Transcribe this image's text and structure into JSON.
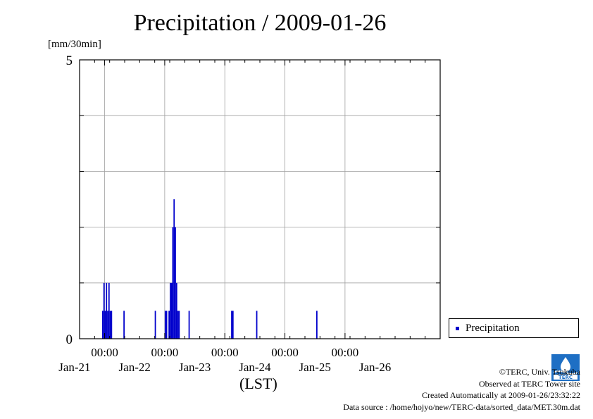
{
  "page": {
    "title": "Precipitation / 2009-01-26",
    "unit_label": "[mm/30min]",
    "x_caption": "(LST)"
  },
  "legend": {
    "label": "Precipitation",
    "color": "#0000cc"
  },
  "credits": {
    "copyright": "©TERC, Univ. Tsukuba",
    "site": "Observed at TERC Tower site",
    "created": "Created Automatically at 2009-01-26/23:32:22",
    "source": "Data source : /home/hojyo/new/TERC-data/sorted_data/MET.30m.dat",
    "logo_text": "TERC"
  },
  "chart_data": {
    "type": "bar",
    "title": "Precipitation / 2009-01-26",
    "ylabel": "[mm/30min]",
    "xlabel": "(LST)",
    "ylim": [
      0,
      5
    ],
    "y_tick_labels": [
      "0",
      "5"
    ],
    "y_gridlines": [
      1,
      2,
      3,
      4
    ],
    "xlim": [
      "2009-01-20T14:00",
      "2009-01-26T14:00"
    ],
    "x_major_ticks": [
      "2009-01-21T00:00",
      "2009-01-22T00:00",
      "2009-01-23T00:00",
      "2009-01-24T00:00",
      "2009-01-25T00:00"
    ],
    "x_tick_time_labels": [
      "00:00",
      "00:00",
      "00:00",
      "00:00",
      "00:00"
    ],
    "x_date_labels": [
      "Jan-21",
      "Jan-22",
      "Jan-23",
      "Jan-24",
      "Jan-25",
      "Jan-26"
    ],
    "grid": true,
    "legend_position": "bottom-right, outside plot",
    "series": [
      {
        "name": "Precipitation",
        "color": "#0000cc",
        "points": [
          {
            "t": "2009-01-20T23:00",
            "v": 0.5
          },
          {
            "t": "2009-01-20T23:30",
            "v": 1.0
          },
          {
            "t": "2009-01-21T00:00",
            "v": 0.5
          },
          {
            "t": "2009-01-21T00:30",
            "v": 1.0
          },
          {
            "t": "2009-01-21T01:00",
            "v": 0.5
          },
          {
            "t": "2009-01-21T01:30",
            "v": 1.0
          },
          {
            "t": "2009-01-21T02:00",
            "v": 0.5
          },
          {
            "t": "2009-01-21T02:30",
            "v": 0.5
          },
          {
            "t": "2009-01-21T07:30",
            "v": 0.5
          },
          {
            "t": "2009-01-21T20:00",
            "v": 0.5
          },
          {
            "t": "2009-01-22T00:00",
            "v": 0.5
          },
          {
            "t": "2009-01-22T00:30",
            "v": 0.5
          },
          {
            "t": "2009-01-22T01:30",
            "v": 0.5
          },
          {
            "t": "2009-01-22T02:00",
            "v": 1.0
          },
          {
            "t": "2009-01-22T02:30",
            "v": 1.0
          },
          {
            "t": "2009-01-22T03:00",
            "v": 2.0
          },
          {
            "t": "2009-01-22T03:30",
            "v": 2.5
          },
          {
            "t": "2009-01-22T04:00",
            "v": 2.0
          },
          {
            "t": "2009-01-22T04:30",
            "v": 1.0
          },
          {
            "t": "2009-01-22T05:00",
            "v": 0.5
          },
          {
            "t": "2009-01-22T05:30",
            "v": 0.5
          },
          {
            "t": "2009-01-22T09:30",
            "v": 0.5
          },
          {
            "t": "2009-01-23T02:30",
            "v": 0.5
          },
          {
            "t": "2009-01-23T03:00",
            "v": 0.5
          },
          {
            "t": "2009-01-23T12:30",
            "v": 0.5
          },
          {
            "t": "2009-01-24T12:30",
            "v": 0.5
          }
        ]
      }
    ]
  }
}
